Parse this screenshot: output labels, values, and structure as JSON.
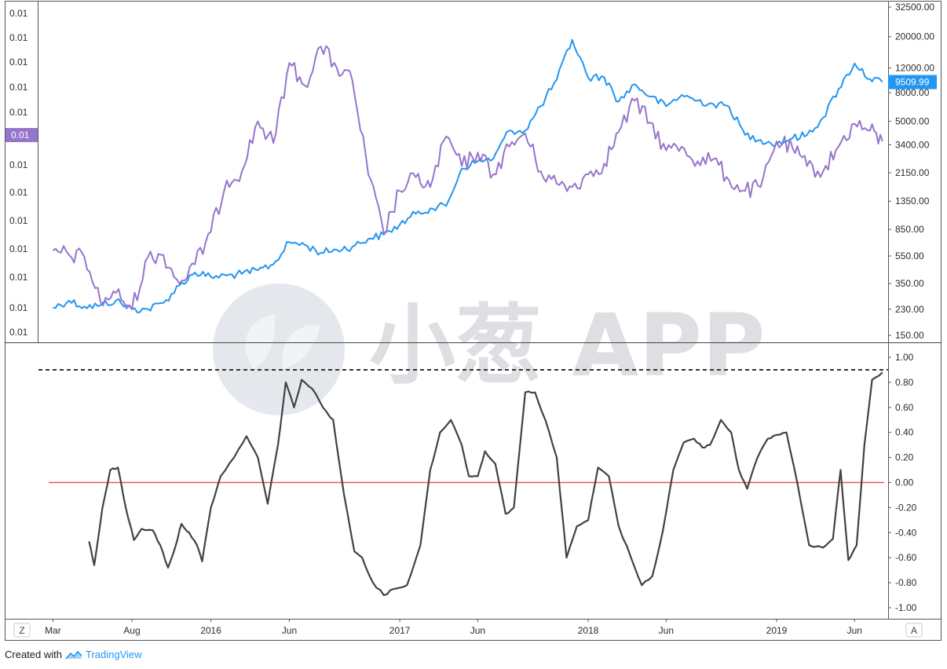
{
  "chart_data": [
    {
      "type": "line",
      "panel": "price",
      "y_scale": "log",
      "right_axis": {
        "ylim": [
          150,
          32500
        ],
        "ticks": [
          "32500.00",
          "20000.00",
          "12000.00",
          "8000.00",
          "5000.00",
          "3400.00",
          "2150.00",
          "1350.00",
          "850.00",
          "550.00",
          "350.00",
          "230.00",
          "150.00"
        ],
        "tick_values": [
          32500,
          20000,
          12000,
          8000,
          5000,
          3400,
          2150,
          1350,
          850,
          550,
          350,
          230,
          150
        ]
      },
      "left_axis": {
        "ticks": [
          "0.01",
          "0.01",
          "0.01",
          "0.01",
          "0.01",
          "0.01",
          "0.01",
          "0.01",
          "0.01",
          "0.01",
          "0.01",
          "0.01",
          "0.01"
        ]
      },
      "series": [
        {
          "color": "#2196f3",
          "axis": "right",
          "last_value_label": "9509.99",
          "points": [
            [
              "2015-03-01",
              235
            ],
            [
              "2015-04-01",
              265
            ],
            [
              "2015-05-01",
              240
            ],
            [
              "2015-06-01",
              245
            ],
            [
              "2015-07-01",
              265
            ],
            [
              "2015-08-01",
              230
            ],
            [
              "2015-09-01",
              230
            ],
            [
              "2015-10-01",
              255
            ],
            [
              "2015-11-01",
              340
            ],
            [
              "2015-12-01",
              420
            ],
            [
              "2016-01-01",
              390
            ],
            [
              "2016-02-01",
              400
            ],
            [
              "2016-03-01",
              410
            ],
            [
              "2016-04-01",
              435
            ],
            [
              "2016-05-01",
              480
            ],
            [
              "2016-06-01",
              690
            ],
            [
              "2016-07-01",
              660
            ],
            [
              "2016-08-01",
              580
            ],
            [
              "2016-09-01",
              610
            ],
            [
              "2016-10-01",
              640
            ],
            [
              "2016-11-01",
              730
            ],
            [
              "2016-12-01",
              780
            ],
            [
              "2017-01-01",
              920
            ],
            [
              "2017-02-01",
              1100
            ],
            [
              "2017-03-01",
              1200
            ],
            [
              "2017-04-01",
              1250
            ],
            [
              "2017-05-01",
              2300
            ],
            [
              "2017-06-01",
              2600
            ],
            [
              "2017-07-01",
              2700
            ],
            [
              "2017-08-01",
              4300
            ],
            [
              "2017-09-01",
              4300
            ],
            [
              "2017-10-01",
              6400
            ],
            [
              "2017-11-01",
              9900
            ],
            [
              "2017-12-01",
              19000
            ],
            [
              "2018-01-01",
              10200
            ],
            [
              "2018-02-01",
              10300
            ],
            [
              "2018-03-01",
              6900
            ],
            [
              "2018-04-01",
              9200
            ],
            [
              "2018-05-01",
              7500
            ],
            [
              "2018-06-01",
              6400
            ],
            [
              "2018-07-01",
              7700
            ],
            [
              "2018-08-01",
              7000
            ],
            [
              "2018-09-01",
              6600
            ],
            [
              "2018-10-01",
              6350
            ],
            [
              "2018-11-01",
              4000
            ],
            [
              "2018-12-01",
              3700
            ],
            [
              "2019-01-01",
              3450
            ],
            [
              "2019-02-01",
              3800
            ],
            [
              "2019-03-01",
              4000
            ],
            [
              "2019-04-01",
              5300
            ],
            [
              "2019-05-01",
              8500
            ],
            [
              "2019-06-01",
              12900
            ],
            [
              "2019-07-01",
              10000
            ],
            [
              "2019-07-25",
              9510
            ]
          ]
        },
        {
          "color": "#9575cd",
          "axis": "left",
          "last_value_label": "0.01",
          "points": [
            [
              "2015-03-01",
              600
            ],
            [
              "2015-04-01",
              560
            ],
            [
              "2015-05-01",
              540
            ],
            [
              "2015-06-01",
              260
            ],
            [
              "2015-07-01",
              300
            ],
            [
              "2015-08-01",
              230
            ],
            [
              "2015-09-01",
              540
            ],
            [
              "2015-10-01",
              560
            ],
            [
              "2015-11-01",
              350
            ],
            [
              "2015-12-01",
              480
            ],
            [
              "2016-01-01",
              820
            ],
            [
              "2016-02-01",
              1900
            ],
            [
              "2016-03-01",
              2200
            ],
            [
              "2016-04-01",
              5000
            ],
            [
              "2016-05-01",
              3500
            ],
            [
              "2016-06-01",
              13000
            ],
            [
              "2016-07-01",
              9000
            ],
            [
              "2016-08-01",
              17000
            ],
            [
              "2016-09-01",
              12000
            ],
            [
              "2016-10-01",
              9800
            ],
            [
              "2016-11-01",
              2100
            ],
            [
              "2016-12-01",
              800
            ],
            [
              "2017-01-01",
              1600
            ],
            [
              "2017-02-01",
              2000
            ],
            [
              "2017-03-01",
              1700
            ],
            [
              "2017-04-01",
              3900
            ],
            [
              "2017-05-01",
              2400
            ],
            [
              "2017-06-01",
              3000
            ],
            [
              "2017-07-01",
              2100
            ],
            [
              "2017-08-01",
              3300
            ],
            [
              "2017-09-01",
              4100
            ],
            [
              "2017-10-01",
              2200
            ],
            [
              "2017-11-01",
              1800
            ],
            [
              "2017-12-01",
              1700
            ],
            [
              "2018-01-01",
              2100
            ],
            [
              "2018-02-01",
              2500
            ],
            [
              "2018-03-01",
              4200
            ],
            [
              "2018-04-01",
              7000
            ],
            [
              "2018-05-01",
              4900
            ],
            [
              "2018-06-01",
              3100
            ],
            [
              "2018-07-01",
              3300
            ],
            [
              "2018-08-01",
              2600
            ],
            [
              "2018-09-01",
              2700
            ],
            [
              "2018-10-01",
              1900
            ],
            [
              "2018-11-01",
              1600
            ],
            [
              "2018-12-01",
              1700
            ],
            [
              "2019-01-01",
              3600
            ],
            [
              "2019-02-01",
              3200
            ],
            [
              "2019-03-01",
              2400
            ],
            [
              "2019-04-01",
              2200
            ],
            [
              "2019-05-01",
              3300
            ],
            [
              "2019-06-01",
              4800
            ],
            [
              "2019-07-01",
              4300
            ],
            [
              "2019-07-25",
              3600
            ]
          ]
        }
      ]
    },
    {
      "type": "line",
      "panel": "indicator",
      "ylim": [
        -1.05,
        1.05
      ],
      "ticks": [
        "1.00",
        "0.80",
        "0.60",
        "0.40",
        "0.20",
        "0.00",
        "-0.20",
        "-0.40",
        "-0.60",
        "-0.80",
        "-1.00"
      ],
      "tick_values": [
        1.0,
        0.8,
        0.6,
        0.4,
        0.2,
        0.0,
        -0.2,
        -0.4,
        -0.6,
        -0.8,
        -1.0
      ],
      "reference_lines": [
        {
          "value": 0.9,
          "style": "dashed",
          "color": "#333333"
        },
        {
          "value": 0.0,
          "style": "solid",
          "color": "#ef5350"
        }
      ],
      "series": [
        {
          "color": "#424242",
          "points": [
            [
              "2015-05-10",
              -0.47
            ],
            [
              "2015-05-20",
              -0.66
            ],
            [
              "2015-06-05",
              -0.2
            ],
            [
              "2015-06-20",
              0.1
            ],
            [
              "2015-07-05",
              0.12
            ],
            [
              "2015-07-20",
              -0.2
            ],
            [
              "2015-08-05",
              -0.46
            ],
            [
              "2015-08-20",
              -0.37
            ],
            [
              "2015-09-10",
              -0.38
            ],
            [
              "2015-09-25",
              -0.5
            ],
            [
              "2015-10-10",
              -0.68
            ],
            [
              "2015-10-25",
              -0.5
            ],
            [
              "2015-11-05",
              -0.33
            ],
            [
              "2015-11-20",
              -0.4
            ],
            [
              "2015-12-05",
              -0.5
            ],
            [
              "2015-12-15",
              -0.63
            ],
            [
              "2016-01-01",
              -0.2
            ],
            [
              "2016-01-20",
              0.05
            ],
            [
              "2016-02-15",
              0.2
            ],
            [
              "2016-03-10",
              0.37
            ],
            [
              "2016-04-01",
              0.2
            ],
            [
              "2016-04-20",
              -0.17
            ],
            [
              "2016-05-10",
              0.3
            ],
            [
              "2016-05-25",
              0.8
            ],
            [
              "2016-06-10",
              0.6
            ],
            [
              "2016-06-25",
              0.82
            ],
            [
              "2016-07-15",
              0.75
            ],
            [
              "2016-08-05",
              0.6
            ],
            [
              "2016-08-25",
              0.5
            ],
            [
              "2016-09-15",
              -0.1
            ],
            [
              "2016-10-05",
              -0.55
            ],
            [
              "2016-10-20",
              -0.6
            ],
            [
              "2016-11-10",
              -0.8
            ],
            [
              "2016-12-01",
              -0.9
            ],
            [
              "2016-12-20",
              -0.85
            ],
            [
              "2017-01-15",
              -0.82
            ],
            [
              "2017-02-10",
              -0.5
            ],
            [
              "2017-03-01",
              0.1
            ],
            [
              "2017-03-20",
              0.4
            ],
            [
              "2017-04-10",
              0.5
            ],
            [
              "2017-05-01",
              0.3
            ],
            [
              "2017-05-15",
              0.05
            ],
            [
              "2017-06-01",
              0.05
            ],
            [
              "2017-06-15",
              0.25
            ],
            [
              "2017-07-05",
              0.15
            ],
            [
              "2017-07-25",
              -0.25
            ],
            [
              "2017-08-10",
              -0.2
            ],
            [
              "2017-09-01",
              0.72
            ],
            [
              "2017-09-20",
              0.72
            ],
            [
              "2017-10-10",
              0.5
            ],
            [
              "2017-11-01",
              0.2
            ],
            [
              "2017-11-20",
              -0.6
            ],
            [
              "2017-12-10",
              -0.35
            ],
            [
              "2018-01-01",
              -0.3
            ],
            [
              "2018-01-20",
              0.12
            ],
            [
              "2018-02-10",
              0.05
            ],
            [
              "2018-03-01",
              -0.35
            ],
            [
              "2018-03-25",
              -0.6
            ],
            [
              "2018-04-15",
              -0.82
            ],
            [
              "2018-05-05",
              -0.75
            ],
            [
              "2018-05-25",
              -0.4
            ],
            [
              "2018-06-15",
              0.1
            ],
            [
              "2018-07-05",
              0.32
            ],
            [
              "2018-07-25",
              0.35
            ],
            [
              "2018-08-10",
              0.28
            ],
            [
              "2018-08-25",
              0.3
            ],
            [
              "2018-09-15",
              0.5
            ],
            [
              "2018-10-05",
              0.4
            ],
            [
              "2018-10-20",
              0.1
            ],
            [
              "2018-11-05",
              -0.05
            ],
            [
              "2018-11-25",
              0.2
            ],
            [
              "2018-12-15",
              0.35
            ],
            [
              "2019-01-01",
              0.38
            ],
            [
              "2019-01-20",
              0.4
            ],
            [
              "2019-02-10",
              0.0
            ],
            [
              "2019-03-05",
              -0.5
            ],
            [
              "2019-04-01",
              -0.52
            ],
            [
              "2019-04-20",
              -0.45
            ],
            [
              "2019-05-05",
              0.1
            ],
            [
              "2019-05-20",
              -0.62
            ],
            [
              "2019-06-05",
              -0.5
            ],
            [
              "2019-06-20",
              0.3
            ],
            [
              "2019-07-05",
              0.82
            ],
            [
              "2019-07-25",
              0.88
            ]
          ]
        }
      ]
    }
  ],
  "x_axis": {
    "range": [
      "2015-02-01",
      "2019-08-05"
    ],
    "ticks": [
      {
        "date": "2015-03-01",
        "label": "Mar"
      },
      {
        "date": "2015-08-01",
        "label": "Aug"
      },
      {
        "date": "2016-01-01",
        "label": "2016"
      },
      {
        "date": "2016-06-01",
        "label": "Jun"
      },
      {
        "date": "2017-01-01",
        "label": "2017"
      },
      {
        "date": "2017-06-01",
        "label": "Jun"
      },
      {
        "date": "2018-01-01",
        "label": "2018"
      },
      {
        "date": "2018-06-01",
        "label": "Jun"
      },
      {
        "date": "2019-01-01",
        "label": "2019"
      },
      {
        "date": "2019-06-01",
        "label": "Jun"
      }
    ]
  },
  "controls": {
    "zoom_label": "Z",
    "auto_label": "A"
  },
  "watermark": {
    "text": "小葱 APP"
  },
  "credit": {
    "prefix": "Created with",
    "brand": "TradingView"
  }
}
